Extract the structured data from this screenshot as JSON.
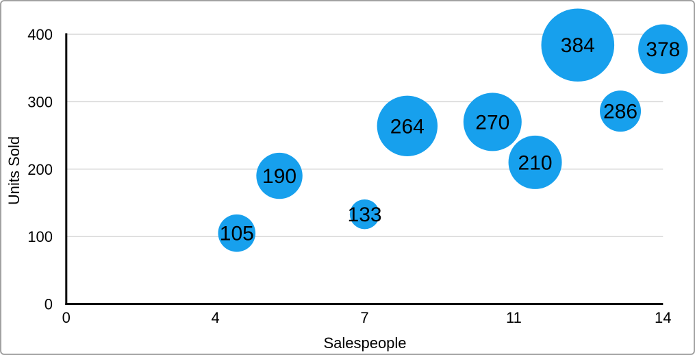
{
  "figure": {
    "background": "#ffffff",
    "border_color": "#a2a2a2"
  },
  "chart_data": {
    "type": "scatter",
    "subtype": "bubble",
    "title": "",
    "xlabel": "Salespeople",
    "ylabel": "Units Sold",
    "xlim": [
      0,
      14
    ],
    "ylim": [
      0,
      400
    ],
    "grid": "horizontal-gridlines-on",
    "legend": "none",
    "axis_color": "#000000",
    "gridline_color": "#d7d7d7",
    "x_ticks": [
      {
        "value": 0,
        "label": "0"
      },
      {
        "value": 3.5,
        "label": "4"
      },
      {
        "value": 7,
        "label": "7"
      },
      {
        "value": 10.5,
        "label": "11"
      },
      {
        "value": 14,
        "label": "14"
      }
    ],
    "y_ticks": [
      {
        "value": 0,
        "label": "0"
      },
      {
        "value": 100,
        "label": "100"
      },
      {
        "value": 200,
        "label": "200"
      },
      {
        "value": 300,
        "label": "300"
      },
      {
        "value": 400,
        "label": "400"
      }
    ],
    "series": [
      {
        "name": "Units Sold",
        "color": "#17a0ed",
        "label_color": "#000000",
        "points": [
          {
            "x": 4,
            "y": 105,
            "label": "105",
            "radius_px": 27.3
          },
          {
            "x": 5,
            "y": 190,
            "label": "190",
            "radius_px": 33.7
          },
          {
            "x": 7,
            "y": 133,
            "label": "133",
            "radius_px": 21.7
          },
          {
            "x": 8,
            "y": 264,
            "label": "264",
            "radius_px": 44.2
          },
          {
            "x": 10,
            "y": 270,
            "label": "270",
            "radius_px": 42.5
          },
          {
            "x": 11,
            "y": 210,
            "label": "210",
            "radius_px": 39.0
          },
          {
            "x": 12,
            "y": 384,
            "label": "384",
            "radius_px": 53.3
          },
          {
            "x": 13,
            "y": 286,
            "label": "286",
            "radius_px": 30.0
          },
          {
            "x": 14,
            "y": 378,
            "label": "378",
            "radius_px": 36.2
          }
        ]
      }
    ]
  }
}
